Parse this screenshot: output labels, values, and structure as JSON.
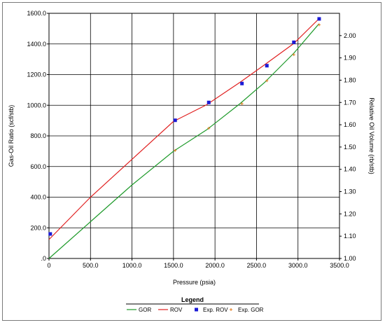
{
  "chart_data": {
    "type": "line",
    "xlabel": "Pressure (psia)",
    "ylabel_left": "Gas-Oil Ratio (scf/stb)",
    "ylabel_right": "Relative Oil Volume (rb/stb)",
    "xlim": [
      0,
      3500
    ],
    "ylim_left": [
      0,
      1600
    ],
    "ylim_right": [
      1.0,
      2.1
    ],
    "x_ticks": [
      0,
      500,
      1000,
      1500,
      2000,
      2500,
      3000,
      3500
    ],
    "x_tick_labels": [
      "0",
      "500.0",
      "1000.0",
      "1500.0",
      "2000.0",
      "2500.0",
      "3000.0",
      "3500.0"
    ],
    "y_left_ticks": [
      0,
      200,
      400,
      600,
      800,
      1000,
      1200,
      1400,
      1600
    ],
    "y_left_tick_labels": [
      ".0",
      "200.0",
      "400.0",
      "600.0",
      "800.0",
      "1000.0",
      "1200.0",
      "1400.0",
      "1600.0"
    ],
    "y_right_ticks": [
      1.0,
      1.1,
      1.2,
      1.3,
      1.4,
      1.5,
      1.6,
      1.7,
      1.8,
      1.9,
      2.0
    ],
    "y_right_tick_labels": [
      "1.00",
      "1.10",
      "1.20",
      "1.30",
      "1.40",
      "1.50",
      "1.60",
      "1.70",
      "1.80",
      "1.90",
      "2.00"
    ],
    "grid": true,
    "legend_position": "bottom",
    "legend_title": "Legend",
    "series": [
      {
        "name": "GOR",
        "kind": "line",
        "axis": "left",
        "color": "#1e9a2a",
        "x": [
          0,
          500,
          1000,
          1500,
          1900,
          2300,
          2600,
          2950,
          3250
        ],
        "y": [
          0,
          240,
          480,
          700,
          840,
          1010,
          1150,
          1340,
          1530
        ]
      },
      {
        "name": "ROV",
        "kind": "line",
        "axis": "right",
        "color": "#e02020",
        "x": [
          0,
          500,
          1000,
          1500,
          1900,
          2300,
          2600,
          2950,
          3250
        ],
        "y": [
          1.085,
          1.275,
          1.445,
          1.615,
          1.69,
          1.79,
          1.87,
          1.965,
          2.075
        ]
      },
      {
        "name": "Exp. ROV",
        "kind": "marker",
        "axis": "right",
        "color": "#1a1ad6",
        "x": [
          15,
          1520,
          1925,
          2325,
          2625,
          2950,
          3255
        ],
        "y": [
          1.11,
          1.62,
          1.7,
          1.785,
          1.865,
          1.97,
          2.075
        ]
      },
      {
        "name": "Exp. GOR",
        "kind": "marker",
        "axis": "left",
        "color": "#e07a1c",
        "x": [
          1520,
          1925,
          2325,
          2625,
          2950,
          3255
        ],
        "y": [
          705,
          850,
          1010,
          1160,
          1330,
          1525
        ]
      }
    ]
  }
}
